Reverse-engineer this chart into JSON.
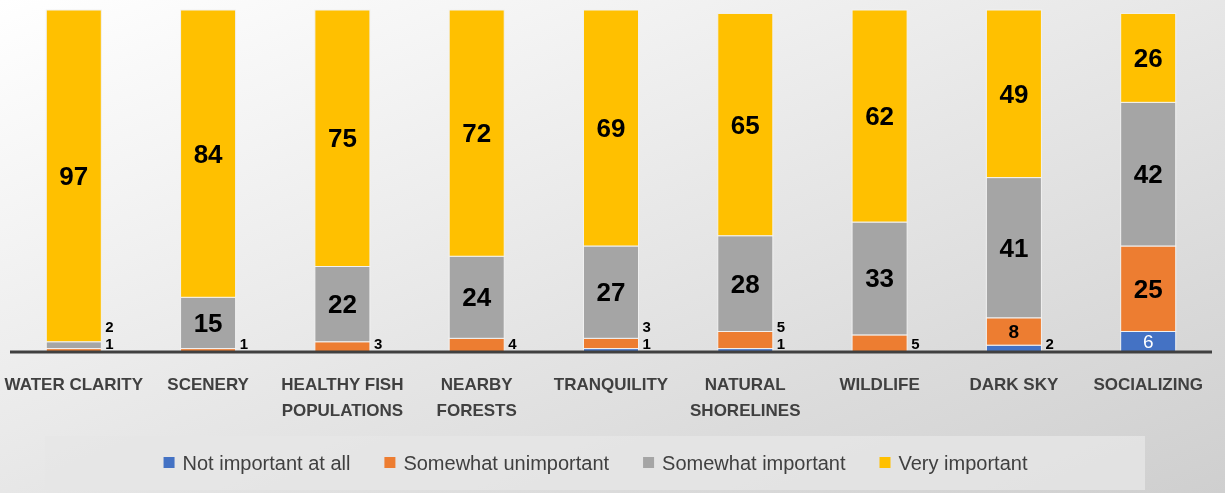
{
  "chart_data": {
    "type": "bar",
    "stacked": true,
    "legend": "bottom",
    "categories": [
      "WATER CLARITY",
      "SCENERY",
      "HEALTHY FISH POPULATIONS",
      "NEARBY FORESTS",
      "TRANQUILITY",
      "NATURAL SHORELINES",
      "WILDLIFE",
      "DARK SKY",
      "SOCIALIZING"
    ],
    "series": [
      {
        "name": "Not important at all",
        "color": "#4472c4",
        "values": [
          0,
          0,
          0,
          0,
          1,
          1,
          0,
          2,
          6
        ],
        "value_labels": [
          null,
          null,
          null,
          null,
          "1",
          "1",
          null,
          "2",
          "6"
        ]
      },
      {
        "name": "Somewhat unimportant",
        "color": "#ed7d31",
        "values": [
          1,
          1,
          3,
          4,
          3,
          5,
          5,
          8,
          25
        ],
        "value_labels": [
          "1",
          "1",
          "3",
          "4",
          "3",
          "5",
          "5",
          "8",
          "25"
        ]
      },
      {
        "name": "Somewhat important",
        "color": "#a5a5a5",
        "values": [
          2,
          15,
          22,
          24,
          27,
          28,
          33,
          41,
          42
        ],
        "value_labels": [
          "2",
          "15",
          "22",
          "24",
          "27",
          "28",
          "33",
          "41",
          "42"
        ]
      },
      {
        "name": "Very important",
        "color": "#ffc000",
        "values": [
          97,
          84,
          75,
          72,
          69,
          65,
          62,
          49,
          26
        ],
        "value_labels": [
          "97",
          "84",
          "75",
          "72",
          "69",
          "65",
          "62",
          "49",
          "26"
        ]
      }
    ]
  }
}
